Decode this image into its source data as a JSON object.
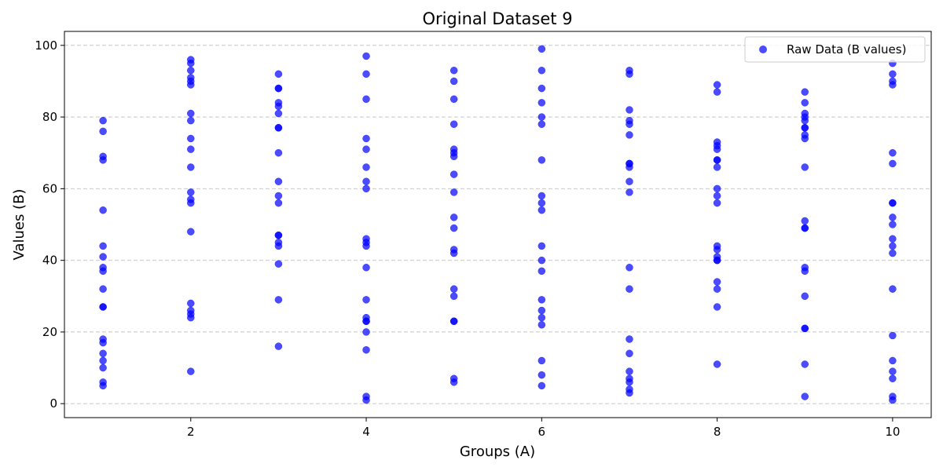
{
  "chart_data": {
    "type": "scatter",
    "title": "Original Dataset 9",
    "xlabel": "Groups (A)",
    "ylabel": "Values (B)",
    "xlim": [
      0.56,
      10.44
    ],
    "ylim": [
      -3.9,
      103.9
    ],
    "xticks": [
      2,
      4,
      6,
      8,
      10
    ],
    "yticks": [
      0,
      20,
      40,
      60,
      80,
      100
    ],
    "grid": "y-dashed",
    "legend_position": "top-right",
    "marker_color": "#0000ff",
    "series": [
      {
        "name": "Raw Data (B values)",
        "points": [
          [
            1,
            79
          ],
          [
            1,
            76
          ],
          [
            1,
            69
          ],
          [
            1,
            68
          ],
          [
            1,
            54
          ],
          [
            1,
            44
          ],
          [
            1,
            41
          ],
          [
            1,
            38
          ],
          [
            1,
            37
          ],
          [
            1,
            32
          ],
          [
            1,
            27
          ],
          [
            1,
            27
          ],
          [
            1,
            18
          ],
          [
            1,
            17
          ],
          [
            1,
            14
          ],
          [
            1,
            12
          ],
          [
            1,
            10
          ],
          [
            1,
            6
          ],
          [
            1,
            5
          ],
          [
            2,
            96
          ],
          [
            2,
            95
          ],
          [
            2,
            93
          ],
          [
            2,
            91
          ],
          [
            2,
            90
          ],
          [
            2,
            89
          ],
          [
            2,
            81
          ],
          [
            2,
            79
          ],
          [
            2,
            74
          ],
          [
            2,
            71
          ],
          [
            2,
            66
          ],
          [
            2,
            59
          ],
          [
            2,
            57
          ],
          [
            2,
            56
          ],
          [
            2,
            48
          ],
          [
            2,
            28
          ],
          [
            2,
            26
          ],
          [
            2,
            25
          ],
          [
            2,
            24
          ],
          [
            2,
            9
          ],
          [
            3,
            92
          ],
          [
            3,
            88
          ],
          [
            3,
            88
          ],
          [
            3,
            84
          ],
          [
            3,
            83
          ],
          [
            3,
            81
          ],
          [
            3,
            77
          ],
          [
            3,
            77
          ],
          [
            3,
            70
          ],
          [
            3,
            62
          ],
          [
            3,
            58
          ],
          [
            3,
            56
          ],
          [
            3,
            47
          ],
          [
            3,
            47
          ],
          [
            3,
            45
          ],
          [
            3,
            44
          ],
          [
            3,
            39
          ],
          [
            3,
            29
          ],
          [
            3,
            16
          ],
          [
            4,
            97
          ],
          [
            4,
            92
          ],
          [
            4,
            85
          ],
          [
            4,
            74
          ],
          [
            4,
            71
          ],
          [
            4,
            66
          ],
          [
            4,
            62
          ],
          [
            4,
            60
          ],
          [
            4,
            46
          ],
          [
            4,
            45
          ],
          [
            4,
            44
          ],
          [
            4,
            38
          ],
          [
            4,
            29
          ],
          [
            4,
            24
          ],
          [
            4,
            23
          ],
          [
            4,
            23
          ],
          [
            4,
            20
          ],
          [
            4,
            15
          ],
          [
            4,
            2
          ],
          [
            4,
            1
          ],
          [
            5,
            93
          ],
          [
            5,
            90
          ],
          [
            5,
            85
          ],
          [
            5,
            78
          ],
          [
            5,
            71
          ],
          [
            5,
            70
          ],
          [
            5,
            69
          ],
          [
            5,
            64
          ],
          [
            5,
            59
          ],
          [
            5,
            52
          ],
          [
            5,
            49
          ],
          [
            5,
            43
          ],
          [
            5,
            42
          ],
          [
            5,
            32
          ],
          [
            5,
            30
          ],
          [
            5,
            23
          ],
          [
            5,
            23
          ],
          [
            5,
            7
          ],
          [
            5,
            6
          ],
          [
            6,
            99
          ],
          [
            6,
            93
          ],
          [
            6,
            88
          ],
          [
            6,
            84
          ],
          [
            6,
            80
          ],
          [
            6,
            78
          ],
          [
            6,
            68
          ],
          [
            6,
            58
          ],
          [
            6,
            56
          ],
          [
            6,
            54
          ],
          [
            6,
            44
          ],
          [
            6,
            40
          ],
          [
            6,
            37
          ],
          [
            6,
            29
          ],
          [
            6,
            26
          ],
          [
            6,
            24
          ],
          [
            6,
            22
          ],
          [
            6,
            12
          ],
          [
            6,
            8
          ],
          [
            6,
            5
          ],
          [
            7,
            93
          ],
          [
            7,
            92
          ],
          [
            7,
            82
          ],
          [
            7,
            79
          ],
          [
            7,
            78
          ],
          [
            7,
            75
          ],
          [
            7,
            67
          ],
          [
            7,
            67
          ],
          [
            7,
            66
          ],
          [
            7,
            62
          ],
          [
            7,
            59
          ],
          [
            7,
            38
          ],
          [
            7,
            32
          ],
          [
            7,
            18
          ],
          [
            7,
            14
          ],
          [
            7,
            9
          ],
          [
            7,
            7
          ],
          [
            7,
            6
          ],
          [
            7,
            4
          ],
          [
            7,
            3
          ],
          [
            8,
            89
          ],
          [
            8,
            87
          ],
          [
            8,
            73
          ],
          [
            8,
            72
          ],
          [
            8,
            71
          ],
          [
            8,
            68
          ],
          [
            8,
            68
          ],
          [
            8,
            66
          ],
          [
            8,
            60
          ],
          [
            8,
            58
          ],
          [
            8,
            56
          ],
          [
            8,
            44
          ],
          [
            8,
            43
          ],
          [
            8,
            41
          ],
          [
            8,
            40
          ],
          [
            8,
            40
          ],
          [
            8,
            34
          ],
          [
            8,
            32
          ],
          [
            8,
            27
          ],
          [
            8,
            11
          ],
          [
            9,
            87
          ],
          [
            9,
            84
          ],
          [
            9,
            81
          ],
          [
            9,
            80
          ],
          [
            9,
            79
          ],
          [
            9,
            77
          ],
          [
            9,
            77
          ],
          [
            9,
            75
          ],
          [
            9,
            74
          ],
          [
            9,
            66
          ],
          [
            9,
            51
          ],
          [
            9,
            49
          ],
          [
            9,
            49
          ],
          [
            9,
            38
          ],
          [
            9,
            37
          ],
          [
            9,
            30
          ],
          [
            9,
            21
          ],
          [
            9,
            21
          ],
          [
            9,
            11
          ],
          [
            9,
            2
          ],
          [
            10,
            95
          ],
          [
            10,
            92
          ],
          [
            10,
            90
          ],
          [
            10,
            89
          ],
          [
            10,
            70
          ],
          [
            10,
            67
          ],
          [
            10,
            56
          ],
          [
            10,
            56
          ],
          [
            10,
            52
          ],
          [
            10,
            50
          ],
          [
            10,
            46
          ],
          [
            10,
            44
          ],
          [
            10,
            42
          ],
          [
            10,
            32
          ],
          [
            10,
            19
          ],
          [
            10,
            12
          ],
          [
            10,
            9
          ],
          [
            10,
            7
          ],
          [
            10,
            2
          ],
          [
            10,
            1
          ]
        ]
      }
    ]
  }
}
